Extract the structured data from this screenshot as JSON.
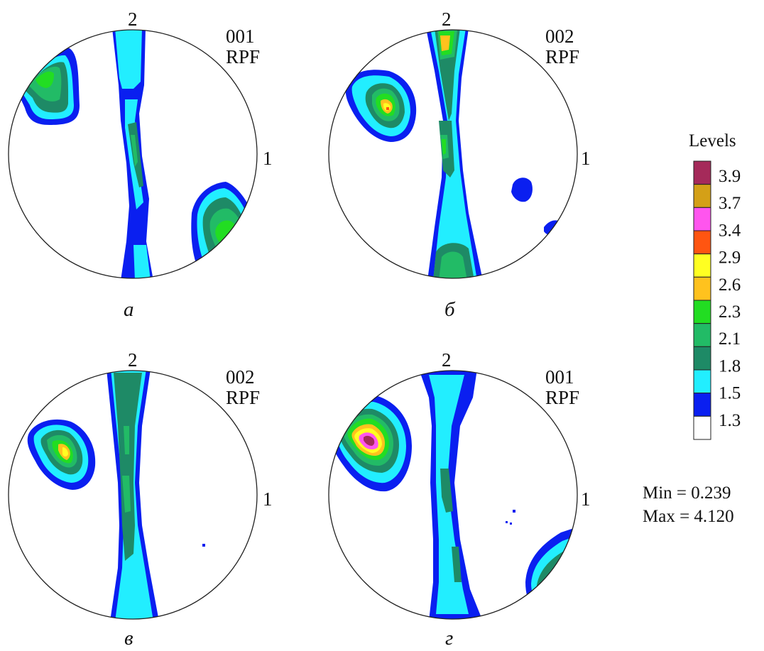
{
  "figure": {
    "panels": [
      {
        "id": "a",
        "caption": "а",
        "top_label": "2",
        "right_label": "1",
        "rpf_index": "001",
        "rpf_label": "RPF"
      },
      {
        "id": "b",
        "caption": "б",
        "top_label": "2",
        "right_label": "1",
        "rpf_index": "002",
        "rpf_label": "RPF"
      },
      {
        "id": "v",
        "caption": "в",
        "top_label": "2",
        "right_label": "1",
        "rpf_index": "002",
        "rpf_label": "RPF"
      },
      {
        "id": "g",
        "caption": "г",
        "top_label": "2",
        "right_label": "1",
        "rpf_index": "001",
        "rpf_label": "RPF"
      }
    ],
    "legend": {
      "title": "Levels",
      "levels": [
        {
          "value": "3.9",
          "color": "#a52a5a"
        },
        {
          "value": "3.7",
          "color": "#d4a017"
        },
        {
          "value": "3.4",
          "color": "#ff55ee"
        },
        {
          "value": "2.9",
          "color": "#ff5511"
        },
        {
          "value": "2.6",
          "color": "#ffff22"
        },
        {
          "value": "2.3",
          "color": "#ffc21e"
        },
        {
          "value": "2.1",
          "color": "#22dd22"
        },
        {
          "value": "1.8",
          "color": "#22bb66"
        },
        {
          "value": "1.5",
          "color": "#1e8a66"
        },
        {
          "value": "1.3",
          "color": "#22eeff"
        },
        {
          "value": "",
          "color": "#0a1ff0"
        },
        {
          "value": "",
          "color": "#ffffff"
        }
      ]
    },
    "stats": {
      "min": "Min = 0.239",
      "max": "Max = 4.120"
    },
    "colors": {
      "white": "#ffffff",
      "blue": "#0a1ff0",
      "cyan": "#22eeff",
      "dark_green": "#1e8a66",
      "mid_green": "#22bb66",
      "green": "#22dd22",
      "orange": "#ffc21e",
      "yellow": "#ffff22",
      "red": "#ff5511",
      "magenta": "#ff55ee",
      "gold": "#d4a017",
      "maroon": "#a52a5a"
    }
  }
}
